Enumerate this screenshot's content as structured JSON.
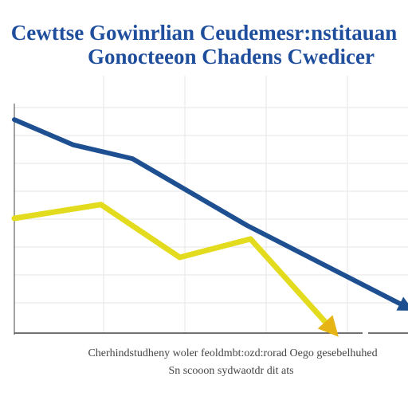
{
  "colors": {
    "title": "#1f4e9c",
    "series_blue": "#1d4f91",
    "series_yellow": "#e3dc1e",
    "arrow_gold": "#e7b416",
    "grid": "#e6e6e6",
    "axis": "#444444"
  },
  "chart_data": {
    "type": "line",
    "title_lines": [
      "Cewttse Gowinrlian Ceudemesr:nstitauan",
      "Gonocteeon Chadens Cwedicer"
    ],
    "caption_lines": [
      "Cherhindstudheny woler feoldmbt:ozd:rorad Oego gesebelhuhed",
      "Sn scooon sydwaotdr dit ats"
    ],
    "ylabels": [
      "",
      "",
      "",
      "",
      "",
      "",
      "",
      ""
    ],
    "xlim": [
      0,
      10
    ],
    "ylim": [
      0,
      10
    ],
    "grid": true,
    "legend": "none",
    "series": [
      {
        "color": "#1d4f91",
        "arrow_end": true,
        "x": [
          0,
          1.5,
          3,
          5.9,
          10
        ],
        "y": [
          9.3,
          8.2,
          7.6,
          4.7,
          1.1
        ]
      },
      {
        "color": "#e3dc1e",
        "arrow_end": true,
        "x": [
          0,
          2.2,
          4.2,
          6,
          8.1
        ],
        "y": [
          5.0,
          5.6,
          3.3,
          4.1,
          0.1
        ]
      }
    ]
  }
}
